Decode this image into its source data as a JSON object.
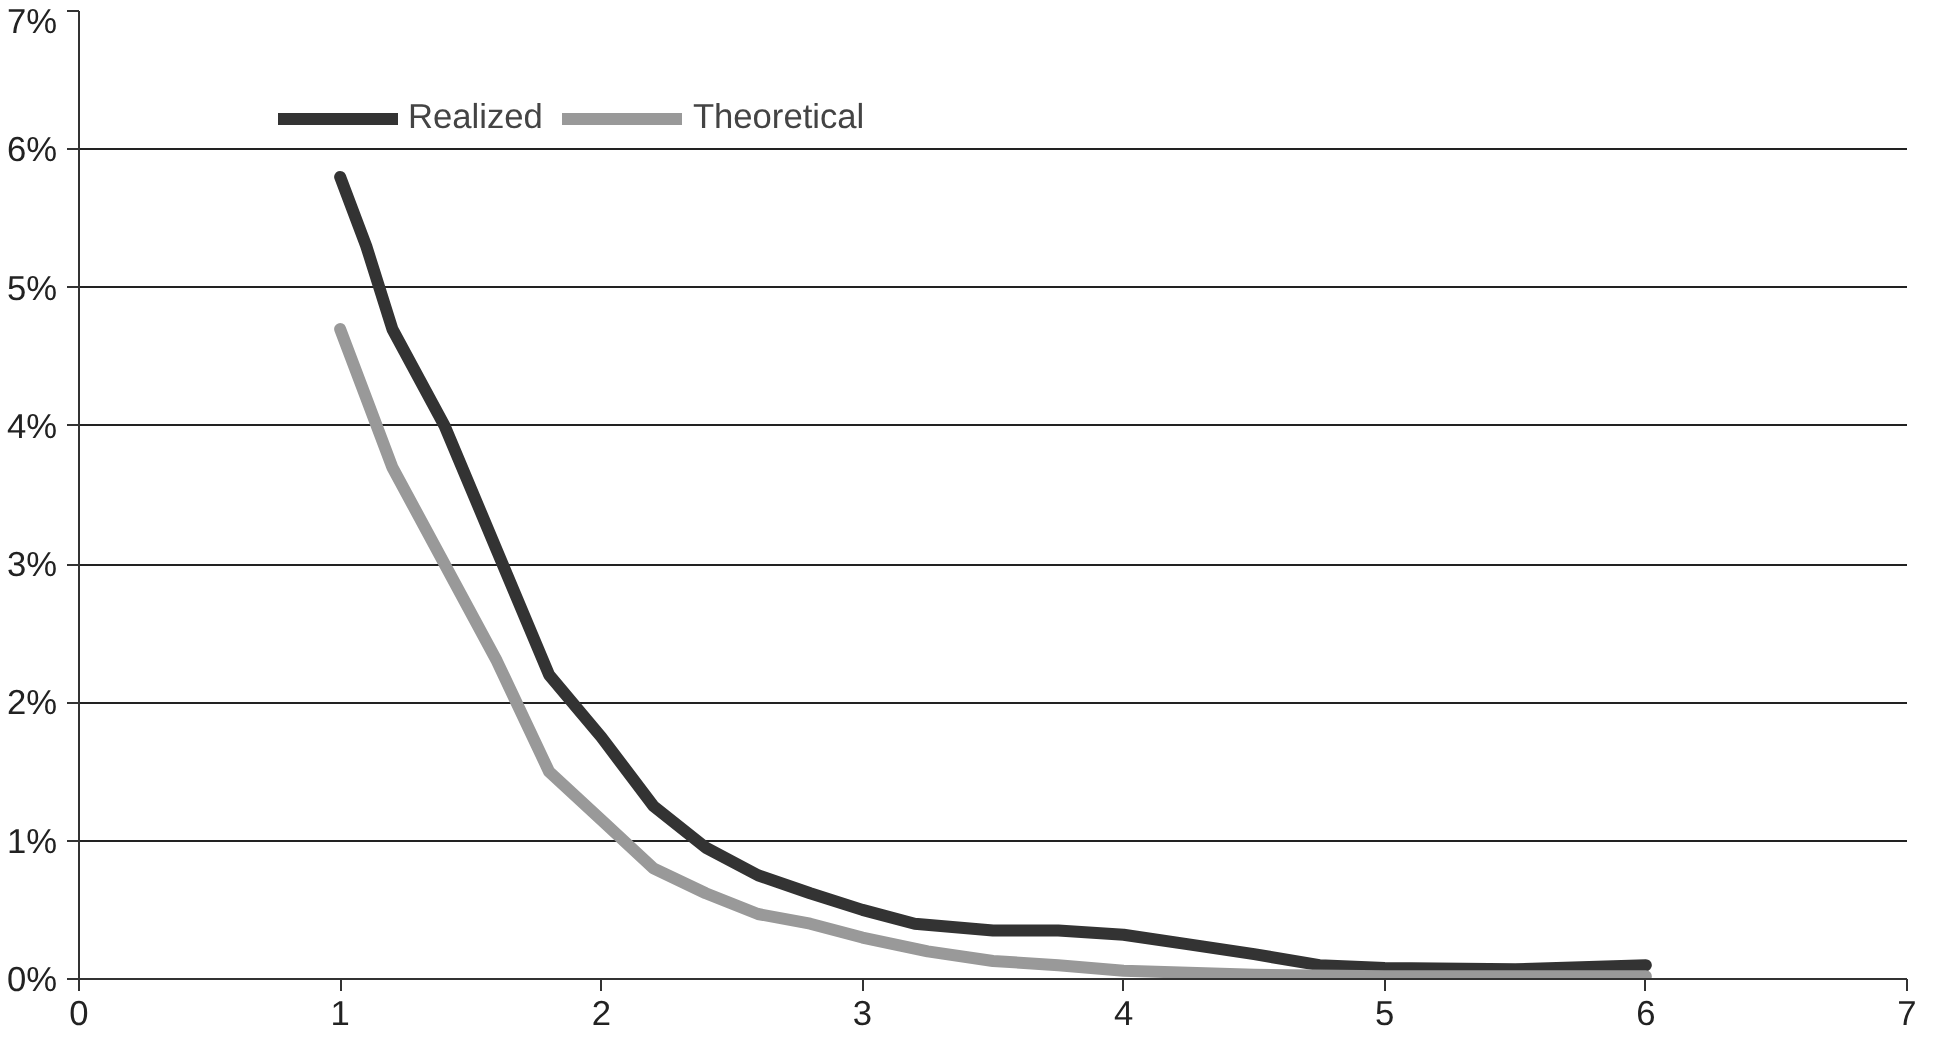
{
  "chart_data": {
    "type": "line",
    "xlim": [
      0,
      7
    ],
    "xticks": [
      0,
      1,
      2,
      3,
      4,
      5,
      6,
      7
    ],
    "ylim": [
      0,
      7
    ],
    "yticks": [
      {
        "value": 0,
        "label": "0%"
      },
      {
        "value": 1,
        "label": "1%"
      },
      {
        "value": 2,
        "label": "2%"
      },
      {
        "value": 3,
        "label": "3%"
      },
      {
        "value": 4,
        "label": "4%"
      },
      {
        "value": 5,
        "label": "5%"
      },
      {
        "value": 6,
        "label": "6%"
      },
      {
        "value": 7,
        "label": "7%"
      }
    ],
    "grid": "y",
    "legend": "top left",
    "marker": "none",
    "line_style": "solid",
    "series": [
      {
        "name": "Realized",
        "color": "#333333",
        "x": [
          1,
          1.1,
          1.2,
          1.4,
          1.6,
          1.8,
          2.0,
          2.2,
          2.4,
          2.6,
          2.8,
          3.0,
          3.2,
          3.5,
          3.75,
          4.0,
          4.25,
          4.5,
          4.75,
          5.0,
          5.5,
          6.0
        ],
        "values": [
          5.8,
          5.3,
          4.7,
          4.0,
          3.1,
          2.2,
          1.75,
          1.25,
          0.95,
          0.75,
          0.62,
          0.5,
          0.4,
          0.35,
          0.35,
          0.32,
          0.25,
          0.18,
          0.1,
          0.08,
          0.07,
          0.1
        ]
      },
      {
        "name": "Theoretical",
        "color": "#999999",
        "x": [
          1,
          1.1,
          1.2,
          1.4,
          1.6,
          1.8,
          2.0,
          2.2,
          2.4,
          2.6,
          2.8,
          3.0,
          3.25,
          3.5,
          3.75,
          4.0,
          4.5,
          5.0,
          6.0
        ],
        "values": [
          4.7,
          4.2,
          3.7,
          3.0,
          2.3,
          1.5,
          1.15,
          0.8,
          0.62,
          0.47,
          0.4,
          0.3,
          0.2,
          0.13,
          0.1,
          0.06,
          0.03,
          0.02,
          0.02
        ]
      }
    ]
  }
}
